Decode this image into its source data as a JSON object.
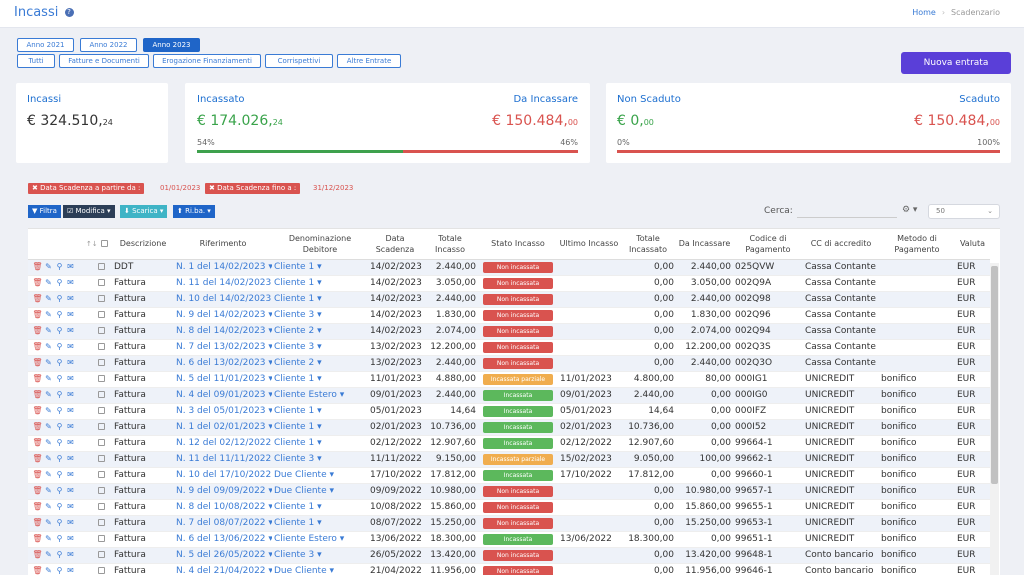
{
  "header": {
    "title": "Incassi",
    "help_icon": "question-circle-icon"
  },
  "breadcrumb": {
    "home": "Home",
    "current": "Scadenzario"
  },
  "year_buttons": [
    {
      "label": "Anno 2021",
      "active": false
    },
    {
      "label": "Anno 2022",
      "active": false
    },
    {
      "label": "Anno 2023",
      "active": true
    }
  ],
  "type_buttons": [
    "Tutti",
    "Fatture e Documenti",
    "Erogazione Finanziamenti",
    "Corrispettivi",
    "Altre Entrate"
  ],
  "new_button": "Nuova entrata",
  "summary": {
    "incassi": {
      "label": "Incassi",
      "amount": "€ 324.510,",
      "cents": "24"
    },
    "incassato": {
      "label": "Incassato",
      "amount": "€ 174.026,",
      "cents": "24",
      "percent": "54%",
      "fraction": 0.54
    },
    "da_incassare": {
      "label": "Da Incassare",
      "amount": "€ 150.484,",
      "cents": "00",
      "percent": "46%"
    },
    "non_scaduto": {
      "label": "Non Scaduto",
      "amount": "€ 0,",
      "cents": "00",
      "percent": "0%",
      "fraction": 0.0
    },
    "scaduto": {
      "label": "Scaduto",
      "amount": "€ 150.484,",
      "cents": "00",
      "percent": "100%"
    }
  },
  "filters": [
    {
      "label": "✖ Data Scadenza a partire da :",
      "value": "01/01/2023"
    },
    {
      "label": "✖ Data Scadenza fino a :",
      "value": "31/12/2023"
    }
  ],
  "toolbar": {
    "filtra": "▼ Filtra",
    "modifica": "☑ Modifica ▾",
    "scarica": "⬇ Scarica ▾",
    "riba": "⬆ Ri.ba. ▾",
    "search_label": "Cerca:",
    "search_value": "",
    "gear": "⚙ ▾",
    "page_size": "50"
  },
  "colors": {
    "accent": "#3a7bd5",
    "primary_button": "#5a3fd8",
    "success": "#3ea14d",
    "danger": "#d9534f",
    "warning": "#f0ad4e"
  },
  "table": {
    "headers": [
      "",
      "",
      "",
      "Descrizione",
      "Riferimento",
      "Denominazione Debitore",
      "Data Scadenza",
      "Totale Incasso",
      "Stato Incasso",
      "Ultimo Incasso",
      "Totale Incassato",
      "Da Incassare",
      "Codice di Pagamento",
      "CC di accredito",
      "Metodo di Pagamento",
      "Valuta"
    ],
    "rows": [
      {
        "desc": "DDT",
        "ref": "N. 1 del 14/02/2023",
        "deb": "Cliente 1",
        "data": "14/02/2023",
        "tot": "2.440,00",
        "stato": "Non incassata",
        "stato_color": "red",
        "ultimo": "",
        "incassato": "0,00",
        "da": "2.440,00",
        "codice": "025QVW",
        "cc": "Cassa Contante",
        "metodo": "",
        "valuta": "EUR"
      },
      {
        "desc": "Fattura",
        "ref": "N. 11 del 14/02/2023",
        "deb": "Cliente 1",
        "data": "14/02/2023",
        "tot": "3.050,00",
        "stato": "Non incassata",
        "stato_color": "red",
        "ultimo": "",
        "incassato": "0,00",
        "da": "3.050,00",
        "codice": "002Q9A",
        "cc": "Cassa Contante",
        "metodo": "",
        "valuta": "EUR"
      },
      {
        "desc": "Fattura",
        "ref": "N. 10 del 14/02/2023",
        "deb": "Cliente 1",
        "data": "14/02/2023",
        "tot": "2.440,00",
        "stato": "Non incassata",
        "stato_color": "red",
        "ultimo": "",
        "incassato": "0,00",
        "da": "2.440,00",
        "codice": "002Q98",
        "cc": "Cassa Contante",
        "metodo": "",
        "valuta": "EUR"
      },
      {
        "desc": "Fattura",
        "ref": "N. 9 del 14/02/2023",
        "deb": "Cliente 3",
        "data": "14/02/2023",
        "tot": "1.830,00",
        "stato": "Non incassata",
        "stato_color": "red",
        "ultimo": "",
        "incassato": "0,00",
        "da": "1.830,00",
        "codice": "002Q96",
        "cc": "Cassa Contante",
        "metodo": "",
        "valuta": "EUR"
      },
      {
        "desc": "Fattura",
        "ref": "N. 8 del 14/02/2023",
        "deb": "Cliente 2",
        "data": "14/02/2023",
        "tot": "2.074,00",
        "stato": "Non incassata",
        "stato_color": "red",
        "ultimo": "",
        "incassato": "0,00",
        "da": "2.074,00",
        "codice": "002Q94",
        "cc": "Cassa Contante",
        "metodo": "",
        "valuta": "EUR"
      },
      {
        "desc": "Fattura",
        "ref": "N. 7 del 13/02/2023",
        "deb": "Cliente 3",
        "data": "13/02/2023",
        "tot": "12.200,00",
        "stato": "Non incassata",
        "stato_color": "red",
        "ultimo": "",
        "incassato": "0,00",
        "da": "12.200,00",
        "codice": "002Q3S",
        "cc": "Cassa Contante",
        "metodo": "",
        "valuta": "EUR"
      },
      {
        "desc": "Fattura",
        "ref": "N. 6 del 13/02/2023",
        "deb": "Cliente 2",
        "data": "13/02/2023",
        "tot": "2.440,00",
        "stato": "Non incassata",
        "stato_color": "red",
        "ultimo": "",
        "incassato": "0,00",
        "da": "2.440,00",
        "codice": "002Q3O",
        "cc": "Cassa Contante",
        "metodo": "",
        "valuta": "EUR"
      },
      {
        "desc": "Fattura",
        "ref": "N. 5 del 11/01/2023",
        "deb": "Cliente 1",
        "data": "11/01/2023",
        "tot": "4.880,00",
        "stato": "Incassata parziale",
        "stato_color": "orange",
        "ultimo": "11/01/2023",
        "incassato": "4.800,00",
        "da": "80,00",
        "codice": "000IG1",
        "cc": "UNICREDIT",
        "metodo": "bonifico",
        "valuta": "EUR"
      },
      {
        "desc": "Fattura",
        "ref": "N. 4 del 09/01/2023",
        "deb": "Cliente Estero",
        "data": "09/01/2023",
        "tot": "2.440,00",
        "stato": "Incassata",
        "stato_color": "green",
        "ultimo": "09/01/2023",
        "incassato": "2.440,00",
        "da": "0,00",
        "codice": "000IG0",
        "cc": "UNICREDIT",
        "metodo": "bonifico",
        "valuta": "EUR"
      },
      {
        "desc": "Fattura",
        "ref": "N. 3 del 05/01/2023",
        "deb": "Cliente 1",
        "data": "05/01/2023",
        "tot": "14,64",
        "stato": "Incassata",
        "stato_color": "green",
        "ultimo": "05/01/2023",
        "incassato": "14,64",
        "da": "0,00",
        "codice": "000IFZ",
        "cc": "UNICREDIT",
        "metodo": "bonifico",
        "valuta": "EUR"
      },
      {
        "desc": "Fattura",
        "ref": "N. 1 del 02/01/2023",
        "deb": "Cliente 1",
        "data": "02/01/2023",
        "tot": "10.736,00",
        "stato": "Incassata",
        "stato_color": "green",
        "ultimo": "02/01/2023",
        "incassato": "10.736,00",
        "da": "0,00",
        "codice": "000I52",
        "cc": "UNICREDIT",
        "metodo": "bonifico",
        "valuta": "EUR"
      },
      {
        "desc": "Fattura",
        "ref": "N. 12 del 02/12/2022",
        "deb": "Cliente 1",
        "data": "02/12/2022",
        "tot": "12.907,60",
        "stato": "Incassata",
        "stato_color": "green",
        "ultimo": "02/12/2022",
        "incassato": "12.907,60",
        "da": "0,00",
        "codice": "99664-1",
        "cc": "UNICREDIT",
        "metodo": "bonifico",
        "valuta": "EUR"
      },
      {
        "desc": "Fattura",
        "ref": "N. 11 del 11/11/2022",
        "deb": "Cliente 3",
        "data": "11/11/2022",
        "tot": "9.150,00",
        "stato": "Incassata parziale",
        "stato_color": "orange",
        "ultimo": "15/02/2023",
        "incassato": "9.050,00",
        "da": "100,00",
        "codice": "99662-1",
        "cc": "UNICREDIT",
        "metodo": "bonifico",
        "valuta": "EUR"
      },
      {
        "desc": "Fattura",
        "ref": "N. 10 del 17/10/2022",
        "deb": "Due Cliente",
        "data": "17/10/2022",
        "tot": "17.812,00",
        "stato": "Incassata",
        "stato_color": "green",
        "ultimo": "17/10/2022",
        "incassato": "17.812,00",
        "da": "0,00",
        "codice": "99660-1",
        "cc": "UNICREDIT",
        "metodo": "bonifico",
        "valuta": "EUR"
      },
      {
        "desc": "Fattura",
        "ref": "N. 9 del 09/09/2022",
        "deb": "Due Cliente",
        "data": "09/09/2022",
        "tot": "10.980,00",
        "stato": "Non incassata",
        "stato_color": "red",
        "ultimo": "",
        "incassato": "0,00",
        "da": "10.980,00",
        "codice": "99657-1",
        "cc": "UNICREDIT",
        "metodo": "bonifico",
        "valuta": "EUR"
      },
      {
        "desc": "Fattura",
        "ref": "N. 8 del 10/08/2022",
        "deb": "Cliente 1",
        "data": "10/08/2022",
        "tot": "15.860,00",
        "stato": "Non incassata",
        "stato_color": "red",
        "ultimo": "",
        "incassato": "0,00",
        "da": "15.860,00",
        "codice": "99655-1",
        "cc": "UNICREDIT",
        "metodo": "bonifico",
        "valuta": "EUR"
      },
      {
        "desc": "Fattura",
        "ref": "N. 7 del 08/07/2022",
        "deb": "Cliente 1",
        "data": "08/07/2022",
        "tot": "15.250,00",
        "stato": "Non incassata",
        "stato_color": "red",
        "ultimo": "",
        "incassato": "0,00",
        "da": "15.250,00",
        "codice": "99653-1",
        "cc": "UNICREDIT",
        "metodo": "bonifico",
        "valuta": "EUR"
      },
      {
        "desc": "Fattura",
        "ref": "N. 6 del 13/06/2022",
        "deb": "Cliente Estero",
        "data": "13/06/2022",
        "tot": "18.300,00",
        "stato": "Incassata",
        "stato_color": "green",
        "ultimo": "13/06/2022",
        "incassato": "18.300,00",
        "da": "0,00",
        "codice": "99651-1",
        "cc": "UNICREDIT",
        "metodo": "bonifico",
        "valuta": "EUR"
      },
      {
        "desc": "Fattura",
        "ref": "N. 5 del 26/05/2022",
        "deb": "Cliente 3",
        "data": "26/05/2022",
        "tot": "13.420,00",
        "stato": "Non incassata",
        "stato_color": "red",
        "ultimo": "",
        "incassato": "0,00",
        "da": "13.420,00",
        "codice": "99648-1",
        "cc": "Conto bancario",
        "metodo": "bonifico",
        "valuta": "EUR"
      },
      {
        "desc": "Fattura",
        "ref": "N. 4 del 21/04/2022",
        "deb": "Due Cliente",
        "data": "21/04/2022",
        "tot": "11.956,00",
        "stato": "Non incassata",
        "stato_color": "red",
        "ultimo": "",
        "incassato": "0,00",
        "da": "11.956,00",
        "codice": "99646-1",
        "cc": "Conto bancario",
        "metodo": "bonifico",
        "valuta": "EUR"
      }
    ]
  }
}
